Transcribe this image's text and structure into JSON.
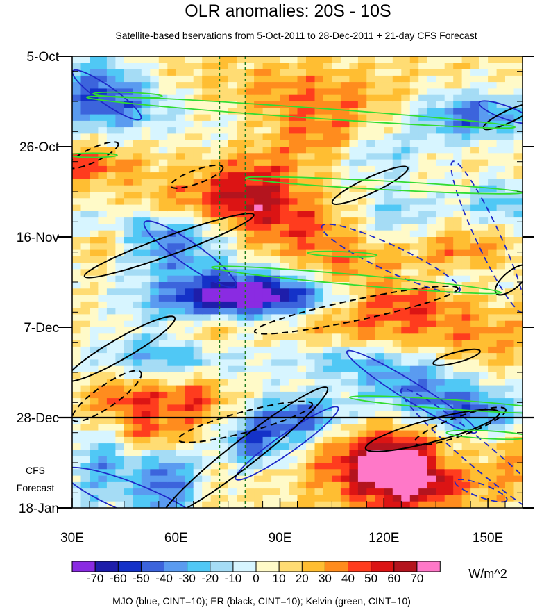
{
  "chart_data": {
    "type": "heatmap",
    "title": "OLR anomalies: 20S - 10S",
    "subtitle": "Satellite-based bservations from 5-Oct-2011 to 28-Dec-2011 + 21-day CFS Forecast",
    "x_ticks": [
      "30E",
      "60E",
      "90E",
      "120E",
      "150E"
    ],
    "x_tick_values": [
      30,
      60,
      90,
      120,
      150
    ],
    "xlim": [
      30,
      160
    ],
    "y_ticks": [
      "5-Oct",
      "26-Oct",
      "16-Nov",
      "7-Dec",
      "28-Dec",
      "18-Jan"
    ],
    "y_tick_days": [
      0,
      21,
      42,
      63,
      84,
      105
    ],
    "ylim_days": [
      0,
      105
    ],
    "forecast_start_day": 84,
    "forecast_label": [
      "CFS",
      "Forecast"
    ],
    "vertical_reference_lons": [
      72.5,
      80
    ],
    "colorbar": {
      "labels": [
        "-70",
        "-60",
        "-50",
        "-40",
        "-30",
        "-20",
        "-10",
        "0",
        "10",
        "20",
        "30",
        "40",
        "50",
        "60",
        "70"
      ],
      "colors": [
        "#8a2be2",
        "#1e1eaa",
        "#1432c8",
        "#3c64dc",
        "#5a9bf0",
        "#50c8f5",
        "#a5dcf5",
        "#d7f5ff",
        "#fffac8",
        "#ffdc73",
        "#ffbe32",
        "#ff8c1e",
        "#ff3c1e",
        "#dc1414",
        "#b4141e",
        "#ff78c8"
      ],
      "units": "W/m^2"
    },
    "legend": "MJO (blue, CINT=10); ER (black, CINT=10); Kelvin (green, CINT=10)",
    "grid": false,
    "colors": {
      "mjo": "#1e28c8",
      "er": "#000000",
      "kelvin": "#32dc32",
      "reference_lines": "#1e7a1e"
    }
  }
}
